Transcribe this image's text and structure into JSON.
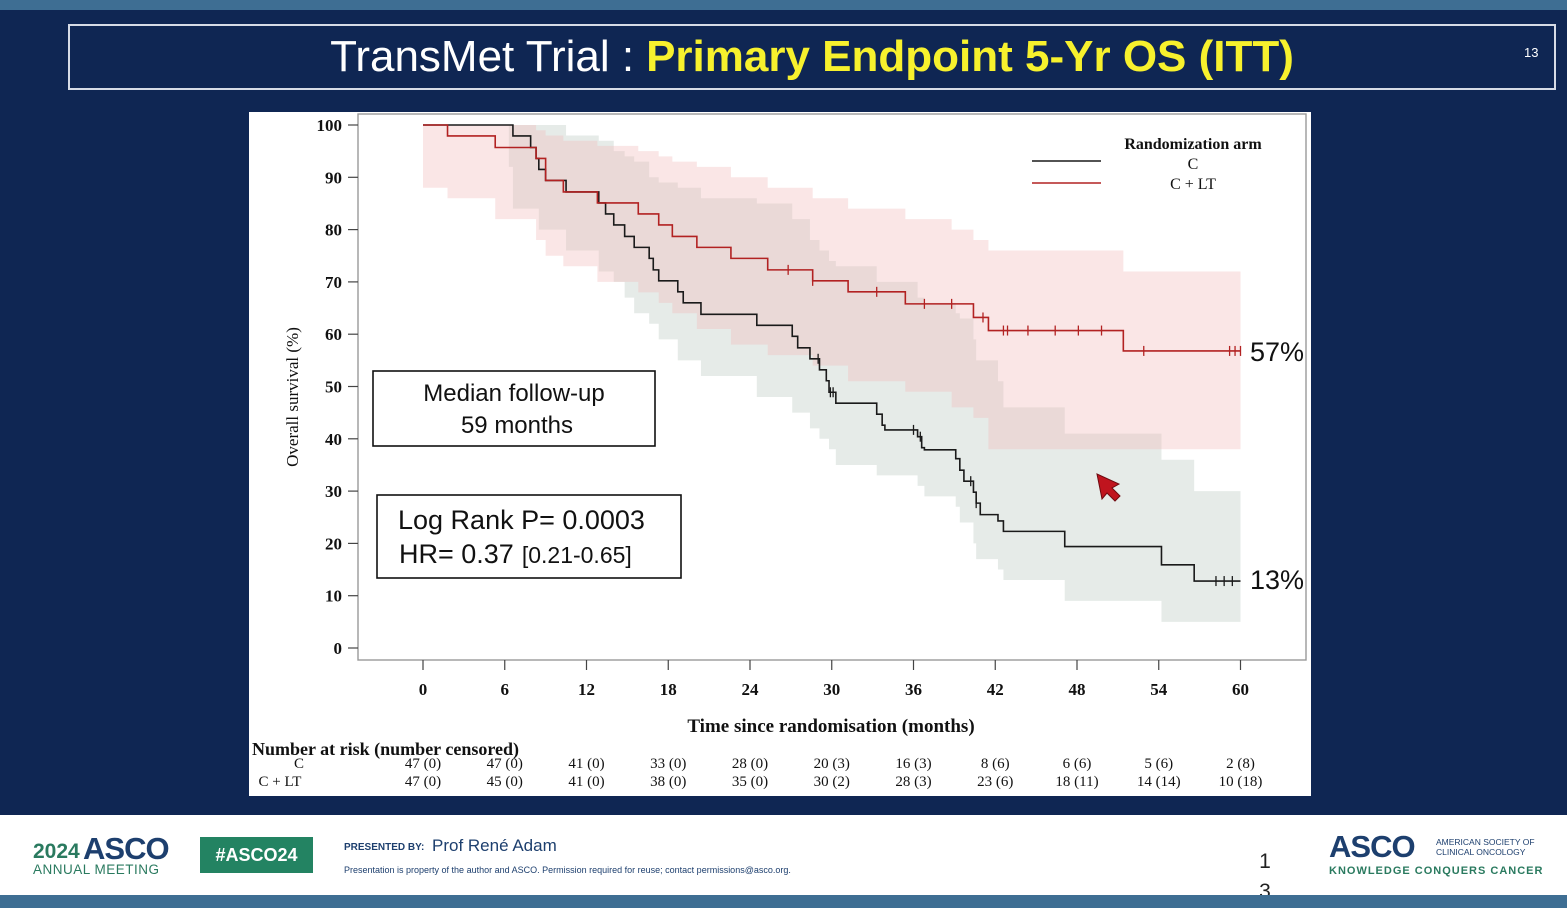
{
  "slide": {
    "title_plain": "TransMet Trial :",
    "title_highlight": "Primary Endpoint 5-Yr OS (ITT)",
    "slide_number": "13"
  },
  "annotations": {
    "median_followup_line1": "Median follow-up",
    "median_followup_line2": "59 months",
    "logrank": "Log Rank P= 0.0003",
    "hr_main": "HR= 0.37",
    "hr_ci": "[0.21-0.65]",
    "label_clt": "57%",
    "label_c": "13%"
  },
  "footer": {
    "year": "2024",
    "asco": "ASCO",
    "annual_meeting": "ANNUAL MEETING",
    "hashtag": "#ASCO24",
    "presented_by": "PRESENTED BY:",
    "presenter": "Prof René Adam",
    "disclaimer": "Presentation is property of the author and ASCO. Permission required for reuse; contact permissions@asco.org.",
    "page_number": "1 3",
    "asco_logo": "ASCO",
    "asco_subtitle": "AMERICAN SOCIETY OF CLINICAL ONCOLOGY",
    "asco_tagline": "KNOWLEDGE CONQUERS CANCER"
  },
  "colors": {
    "background": "#0f2653",
    "title_highlight": "#f7f12d",
    "series_c": "#1a1a1a",
    "series_clt": "#b22222",
    "band_c": "#c8d2cc",
    "band_clt": "#f1b6b6",
    "cursor": "#c0141e"
  },
  "chart_data": {
    "type": "line",
    "subtype": "kaplan-meier",
    "xlabel": "Time since randomisation (months)",
    "ylabel": "Overall survival (%)",
    "xlim": [
      -4.8,
      64
    ],
    "ylim": [
      0,
      100
    ],
    "xticks": [
      0,
      6,
      12,
      18,
      24,
      30,
      36,
      42,
      48,
      54,
      60
    ],
    "yticks": [
      0,
      10,
      20,
      30,
      40,
      50,
      60,
      70,
      80,
      90,
      100
    ],
    "legend": {
      "title": "Randomization arm",
      "placement": "top-right",
      "entries": [
        "C",
        "C + LT"
      ]
    },
    "series": [
      {
        "name": "C",
        "color": "#1a1a1a",
        "steps": [
          [
            0,
            100
          ],
          [
            6.3,
            100
          ],
          [
            6.6,
            97.9
          ],
          [
            7.9,
            95.7
          ],
          [
            8.3,
            93.6
          ],
          [
            8.5,
            91.5
          ],
          [
            9.0,
            89.4
          ],
          [
            10.5,
            87.2
          ],
          [
            12.9,
            85.1
          ],
          [
            13.4,
            83.0
          ],
          [
            14.0,
            80.9
          ],
          [
            14.8,
            78.7
          ],
          [
            15.5,
            76.6
          ],
          [
            16.6,
            74.5
          ],
          [
            16.9,
            72.3
          ],
          [
            17.3,
            70.2
          ],
          [
            18.7,
            68.1
          ],
          [
            19.1,
            66.0
          ],
          [
            20.4,
            63.8
          ],
          [
            24.5,
            61.7
          ],
          [
            27.1,
            59.6
          ],
          [
            27.5,
            57.4
          ],
          [
            28.4,
            55.3
          ],
          [
            29.1,
            53.2
          ],
          [
            29.6,
            51.1
          ],
          [
            29.8,
            48.9
          ],
          [
            30.3,
            46.8
          ],
          [
            33.3,
            44.7
          ],
          [
            33.7,
            42.6
          ],
          [
            33.9,
            41.7
          ],
          [
            36.3,
            40.4
          ],
          [
            36.6,
            38.3
          ],
          [
            36.8,
            37.9
          ],
          [
            39.1,
            36.2
          ],
          [
            39.4,
            34.0
          ],
          [
            39.7,
            31.9
          ],
          [
            40.4,
            29.8
          ],
          [
            40.6,
            27.7
          ],
          [
            40.9,
            25.5
          ],
          [
            42.2,
            24.3
          ],
          [
            42.6,
            22.3
          ],
          [
            47.1,
            19.4
          ],
          [
            54.2,
            15.9
          ],
          [
            56.6,
            12.8
          ],
          [
            60.0,
            12.8
          ]
        ],
        "censored": [
          29.0,
          29.9,
          30.1,
          36.0,
          36.5,
          40.2,
          40.6,
          58.2,
          58.8,
          59.4
        ],
        "ci_band": [
          [
            0,
            100,
            100
          ],
          [
            6.3,
            100,
            100
          ],
          [
            6.6,
            92,
            100
          ],
          [
            8.5,
            84,
            100
          ],
          [
            10.5,
            80,
            98
          ],
          [
            12.9,
            76,
            97
          ],
          [
            14.0,
            72,
            95
          ],
          [
            14.8,
            70,
            94
          ],
          [
            15.5,
            67,
            93
          ],
          [
            16.6,
            64,
            90
          ],
          [
            17.3,
            62,
            89
          ],
          [
            18.7,
            59,
            88
          ],
          [
            20.4,
            55,
            86
          ],
          [
            24.5,
            52,
            85
          ],
          [
            27.1,
            48,
            82
          ],
          [
            28.4,
            45,
            78
          ],
          [
            29.1,
            42,
            76
          ],
          [
            29.8,
            40,
            74
          ],
          [
            30.3,
            38,
            73
          ],
          [
            33.3,
            35,
            70
          ],
          [
            36.3,
            33,
            67
          ],
          [
            36.8,
            31,
            66
          ],
          [
            39.1,
            29,
            64
          ],
          [
            39.4,
            27,
            63
          ],
          [
            40.4,
            24,
            59
          ],
          [
            40.6,
            20,
            55
          ],
          [
            42.2,
            17,
            51
          ],
          [
            42.6,
            15,
            46
          ],
          [
            47.1,
            13,
            41
          ],
          [
            54.2,
            9,
            36
          ],
          [
            56.6,
            5,
            30
          ],
          [
            60.0,
            5,
            30
          ]
        ]
      },
      {
        "name": "C + LT",
        "color": "#b22222",
        "steps": [
          [
            0,
            100
          ],
          [
            1.8,
            97.9
          ],
          [
            5.3,
            95.7
          ],
          [
            8.3,
            93.6
          ],
          [
            9.0,
            89.4
          ],
          [
            10.3,
            87.2
          ],
          [
            12.8,
            85.1
          ],
          [
            15.8,
            83.0
          ],
          [
            17.3,
            80.9
          ],
          [
            18.3,
            78.7
          ],
          [
            20.1,
            76.6
          ],
          [
            22.6,
            74.5
          ],
          [
            25.3,
            72.3
          ],
          [
            28.6,
            70.2
          ],
          [
            31.2,
            68.1
          ],
          [
            35.4,
            65.8
          ],
          [
            40.4,
            63.2
          ],
          [
            41.5,
            60.7
          ],
          [
            51.4,
            56.8
          ],
          [
            60.0,
            56.8
          ]
        ],
        "censored": [
          26.8,
          28.6,
          33.3,
          36.8,
          38.8,
          41.1,
          42.6,
          42.9,
          44.4,
          46.4,
          48.1,
          49.8,
          52.9,
          59.2,
          59.6,
          60.0
        ],
        "ci_band": [
          [
            0,
            100,
            100
          ],
          [
            1.8,
            88,
            100
          ],
          [
            5.3,
            86,
            100
          ],
          [
            8.3,
            82,
            99
          ],
          [
            9.0,
            78,
            98
          ],
          [
            10.3,
            75,
            97
          ],
          [
            12.8,
            73,
            96
          ],
          [
            15.8,
            70,
            95
          ],
          [
            17.3,
            68,
            94
          ],
          [
            18.3,
            66,
            93
          ],
          [
            20.1,
            64,
            92
          ],
          [
            22.6,
            61,
            90
          ],
          [
            25.3,
            58,
            88
          ],
          [
            28.6,
            56,
            86
          ],
          [
            31.2,
            54,
            84
          ],
          [
            35.4,
            51,
            82
          ],
          [
            38.8,
            49,
            80
          ],
          [
            40.4,
            46,
            78
          ],
          [
            41.5,
            44,
            76
          ],
          [
            51.4,
            38,
            72
          ],
          [
            60.0,
            38,
            72
          ]
        ]
      }
    ],
    "risk_table": {
      "title": "Number at risk (number censored)",
      "rows": [
        {
          "name": "C",
          "values": [
            "47 (0)",
            "47 (0)",
            "41 (0)",
            "33 (0)",
            "28 (0)",
            "20 (3)",
            "16 (3)",
            "8 (6)",
            "6 (6)",
            "5 (6)",
            "2 (8)"
          ]
        },
        {
          "name": "C + LT",
          "values": [
            "47 (0)",
            "45 (0)",
            "41 (0)",
            "38 (0)",
            "35 (0)",
            "30 (2)",
            "28 (3)",
            "23 (6)",
            "18 (11)",
            "14 (14)",
            "10 (18)"
          ]
        }
      ]
    }
  }
}
